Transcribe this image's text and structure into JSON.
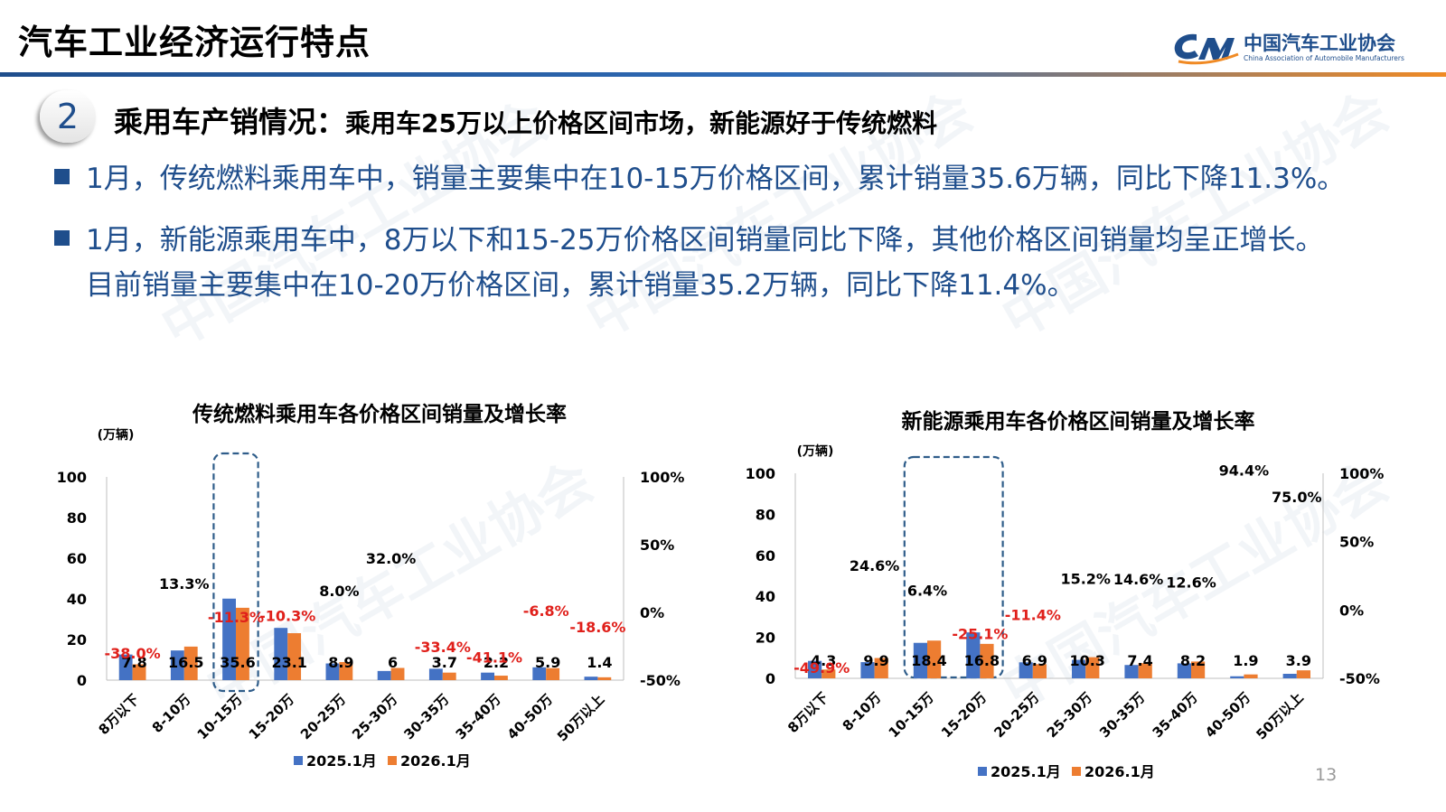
{
  "header": {
    "title": "汽车工业经济运行特点",
    "logo_mark": "CAM",
    "logo_name": "中国汽车工业协会",
    "logo_en": "China Association of Automobile Manufacturers",
    "colors": {
      "brand_blue": "#1f4e8c",
      "brand_orange": "#f08a24"
    }
  },
  "section": {
    "number": "2",
    "title": "乘用车产销情况：",
    "subtitle": "乘用车25万以上价格区间市场，新能源好于传统燃料"
  },
  "bullets": [
    {
      "line1": "1月，传统燃料乘用车中，销量主要集中在10-15万价格区间，累计销量35.6万辆，同比下降11.3%。"
    },
    {
      "line1": "1月，新能源乘用车中，8万以下和15-25万价格区间销量同比下降，其他价格区间销量均呈正增长。",
      "line2": "目前销量主要集中在10-20万价格区间，累计销量35.2万辆，同比下降11.4%。"
    }
  ],
  "chart_data": [
    {
      "type": "bar",
      "title": "传统燃料乘用车各价格区间销量及增长率",
      "ylabel": "(万辆)",
      "categories": [
        "8万以下",
        "8-10万",
        "10-15万",
        "15-20万",
        "20-25万",
        "25-30万",
        "30-35万",
        "35-40万",
        "40-50万",
        "50万以上"
      ],
      "series": [
        {
          "name": "2025.1月",
          "color": "#4472c4",
          "values": [
            12.6,
            14.6,
            40.1,
            25.7,
            8.2,
            4.5,
            5.6,
            3.7,
            6.3,
            1.7
          ]
        },
        {
          "name": "2026.1月",
          "color": "#ed7d31",
          "values": [
            7.8,
            16.5,
            35.6,
            23.1,
            8.9,
            6.0,
            3.7,
            2.2,
            5.9,
            1.4
          ]
        }
      ],
      "growth_rate_pct": [
        -38.0,
        13.3,
        -11.3,
        -10.3,
        8.0,
        32.0,
        -33.4,
        -41.1,
        -6.8,
        -18.6
      ],
      "growth_labels": [
        "-38.0%",
        "13.3%",
        "-11.3%",
        "-10.3%",
        "8.0%",
        "32.0%",
        "-33.4%",
        "-41.1%",
        "-6.8%",
        "-18.6%"
      ],
      "ylim": [
        0,
        100
      ],
      "y_ticks": [
        "0",
        "20",
        "40",
        "60",
        "80",
        "100"
      ],
      "y2lim": [
        -50,
        100
      ],
      "y2_ticks": [
        "-50%",
        "0%",
        "50%",
        "100%"
      ],
      "highlight_category": "10-15万",
      "legend": "bottom",
      "negative_color": "#e0201b"
    },
    {
      "type": "bar",
      "title": "新能源乘用车各价格区间销量及增长率",
      "ylabel": "(万辆)",
      "categories": [
        "8万以下",
        "8-10万",
        "10-15万",
        "15-20万",
        "20-25万",
        "25-30万",
        "30-35万",
        "35-40万",
        "40-50万",
        "50万以上"
      ],
      "series": [
        {
          "name": "2025.1月",
          "color": "#4472c4",
          "values": [
            8.5,
            7.9,
            17.3,
            22.4,
            7.8,
            9.0,
            6.5,
            7.3,
            1.0,
            2.2
          ]
        },
        {
          "name": "2026.1月",
          "color": "#ed7d31",
          "values": [
            4.3,
            9.9,
            18.4,
            16.8,
            6.9,
            10.3,
            7.4,
            8.2,
            1.9,
            3.9
          ]
        }
      ],
      "growth_rate_pct": [
        -49.9,
        24.6,
        6.4,
        -25.1,
        -11.4,
        15.2,
        14.6,
        12.6,
        94.4,
        75.0
      ],
      "growth_labels": [
        "-49.9%",
        "24.6%",
        "6.4%",
        "-25.1%",
        "-11.4%",
        "15.2%",
        "14.6%",
        "12.6%",
        "94.4%",
        "75.0%"
      ],
      "ylim": [
        0,
        100
      ],
      "y_ticks": [
        "0",
        "20",
        "40",
        "60",
        "80",
        "100"
      ],
      "y2lim": [
        -50,
        100
      ],
      "y2_ticks": [
        "-50%",
        "0%",
        "50%",
        "100%"
      ],
      "highlight_category": "10-15万,15-20万",
      "legend": "bottom",
      "negative_color": "#e0201b"
    }
  ],
  "page_number": "13"
}
